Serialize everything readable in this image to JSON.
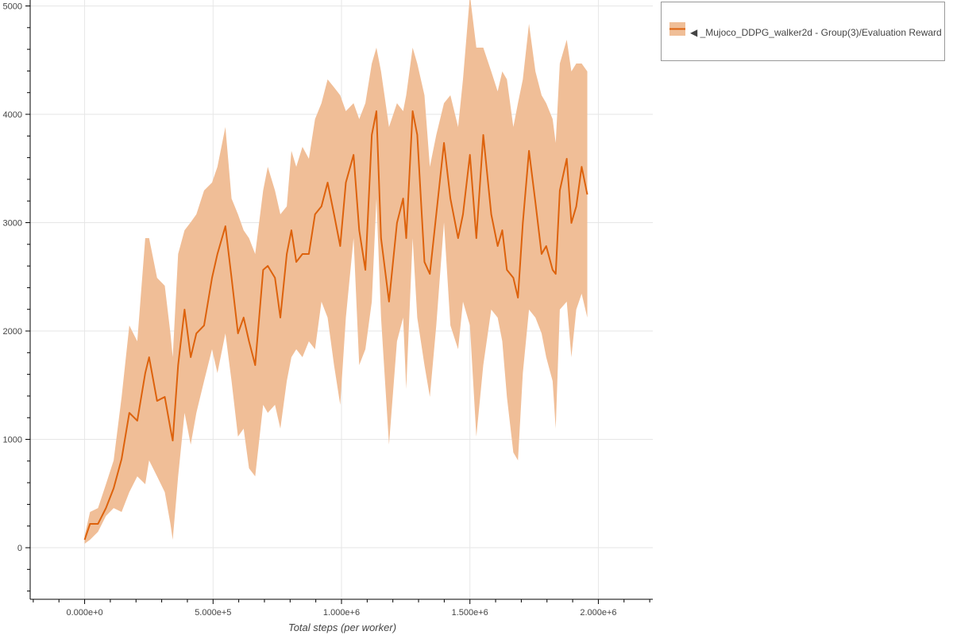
{
  "chart_data": {
    "type": "line",
    "title": "",
    "xlabel": "Total steps (per worker)",
    "ylabel": "",
    "xlim": [
      -212000,
      2212000
    ],
    "ylim": [
      -476,
      5055
    ],
    "grid": true,
    "legend_placement": "outside-top-right",
    "x_ticks": [
      0,
      500000,
      1000000,
      1500000,
      2000000
    ],
    "x_tick_labels": [
      "0.000e+0",
      "5.000e+5",
      "1.000e+6",
      "1.500e+6",
      "2.000e+6"
    ],
    "y_ticks": [
      0,
      1000,
      2000,
      3000,
      4000,
      5000
    ],
    "y_tick_labels": [
      "0",
      "1000",
      "2000",
      "3000",
      "4000",
      "5000"
    ],
    "colors": {
      "line": "#dd620c",
      "band": "#f0be97"
    },
    "series": [
      {
        "name": "◀ _Mujoco_DDPG_walker2d - Group(3)/Evaluation Reward",
        "x": [
          0,
          21000,
          52000,
          83000,
          113000,
          144000,
          174000,
          205000,
          236000,
          251000,
          282000,
          312000,
          334000,
          343000,
          364000,
          389000,
          413000,
          435000,
          465000,
          496000,
          517000,
          548000,
          572000,
          597000,
          619000,
          640000,
          664000,
          695000,
          713000,
          741000,
          762000,
          787000,
          805000,
          824000,
          848000,
          873000,
          897000,
          922000,
          946000,
          971000,
          995000,
          1017000,
          1047000,
          1069000,
          1093000,
          1118000,
          1136000,
          1154000,
          1185000,
          1216000,
          1240000,
          1252000,
          1277000,
          1295000,
          1323000,
          1344000,
          1369000,
          1399000,
          1424000,
          1454000,
          1473000,
          1500000,
          1525000,
          1552000,
          1583000,
          1608000,
          1626000,
          1644000,
          1669000,
          1687000,
          1706000,
          1730000,
          1755000,
          1779000,
          1797000,
          1822000,
          1834000,
          1850000,
          1877000,
          1895000,
          1914000,
          1935000,
          1957000
        ],
        "mean": [
          73,
          220,
          220,
          366,
          549,
          820,
          1245,
          1172,
          1612,
          1758,
          1355,
          1392,
          1099,
          989,
          1685,
          2198,
          1758,
          1978,
          2051,
          2491,
          2711,
          2967,
          2491,
          1978,
          2124,
          1905,
          1685,
          2564,
          2601,
          2491,
          2124,
          2711,
          2930,
          2637,
          2711,
          2711,
          3077,
          3150,
          3370,
          3077,
          2784,
          3370,
          3626,
          2930,
          2564,
          3810,
          4029,
          2857,
          2271,
          2997,
          3223,
          2857,
          4029,
          3810,
          2637,
          2527,
          3077,
          3736,
          3223,
          2857,
          3077,
          3626,
          2857,
          3810,
          3077,
          2784,
          2930,
          2564,
          2491,
          2308,
          2997,
          3663,
          3187,
          2711,
          2784,
          2564,
          2527,
          3297,
          3590,
          2997,
          3150,
          3516,
          3260
        ],
        "upper": [
          110,
          330,
          366,
          586,
          806,
          1392,
          2051,
          1905,
          2857,
          2857,
          2491,
          2418,
          1978,
          1758,
          2711,
          2930,
          3004,
          3077,
          3297,
          3370,
          3516,
          3883,
          3223,
          3077,
          2930,
          2857,
          2711,
          3297,
          3516,
          3297,
          3077,
          3150,
          3663,
          3516,
          3700,
          3590,
          3956,
          4103,
          4322,
          4249,
          4176,
          4029,
          4103,
          3956,
          4103,
          4469,
          4615,
          4396,
          3883,
          4103,
          4029,
          4176,
          4615,
          4469,
          4176,
          3516,
          3810,
          4103,
          4176,
          3883,
          4322,
          5100,
          4615,
          4615,
          4396,
          4212,
          4396,
          4322,
          3883,
          4103,
          4322,
          4835,
          4396,
          4176,
          4103,
          3956,
          3736,
          4469,
          4689,
          4396,
          4469,
          4469,
          4396
        ],
        "lower": [
          37,
          73,
          147,
          293,
          366,
          330,
          513,
          659,
          586,
          806,
          659,
          513,
          220,
          73,
          659,
          1245,
          952,
          1245,
          1538,
          1832,
          1612,
          1978,
          1538,
          1026,
          1099,
          733,
          659,
          1319,
          1245,
          1319,
          1099,
          1538,
          1758,
          1832,
          1758,
          1905,
          1832,
          2271,
          2124,
          1685,
          1319,
          2124,
          2857,
          1685,
          1832,
          2271,
          3223,
          2124,
          952,
          1905,
          2124,
          1465,
          2857,
          2124,
          1685,
          1392,
          2051,
          3004,
          2051,
          1832,
          2271,
          2051,
          1026,
          1685,
          2198,
          2124,
          1905,
          1392,
          879,
          806,
          1612,
          2198,
          2124,
          1978,
          1758,
          1538,
          1099,
          2198,
          2271,
          1758,
          2198,
          2344,
          2124
        ]
      }
    ]
  }
}
